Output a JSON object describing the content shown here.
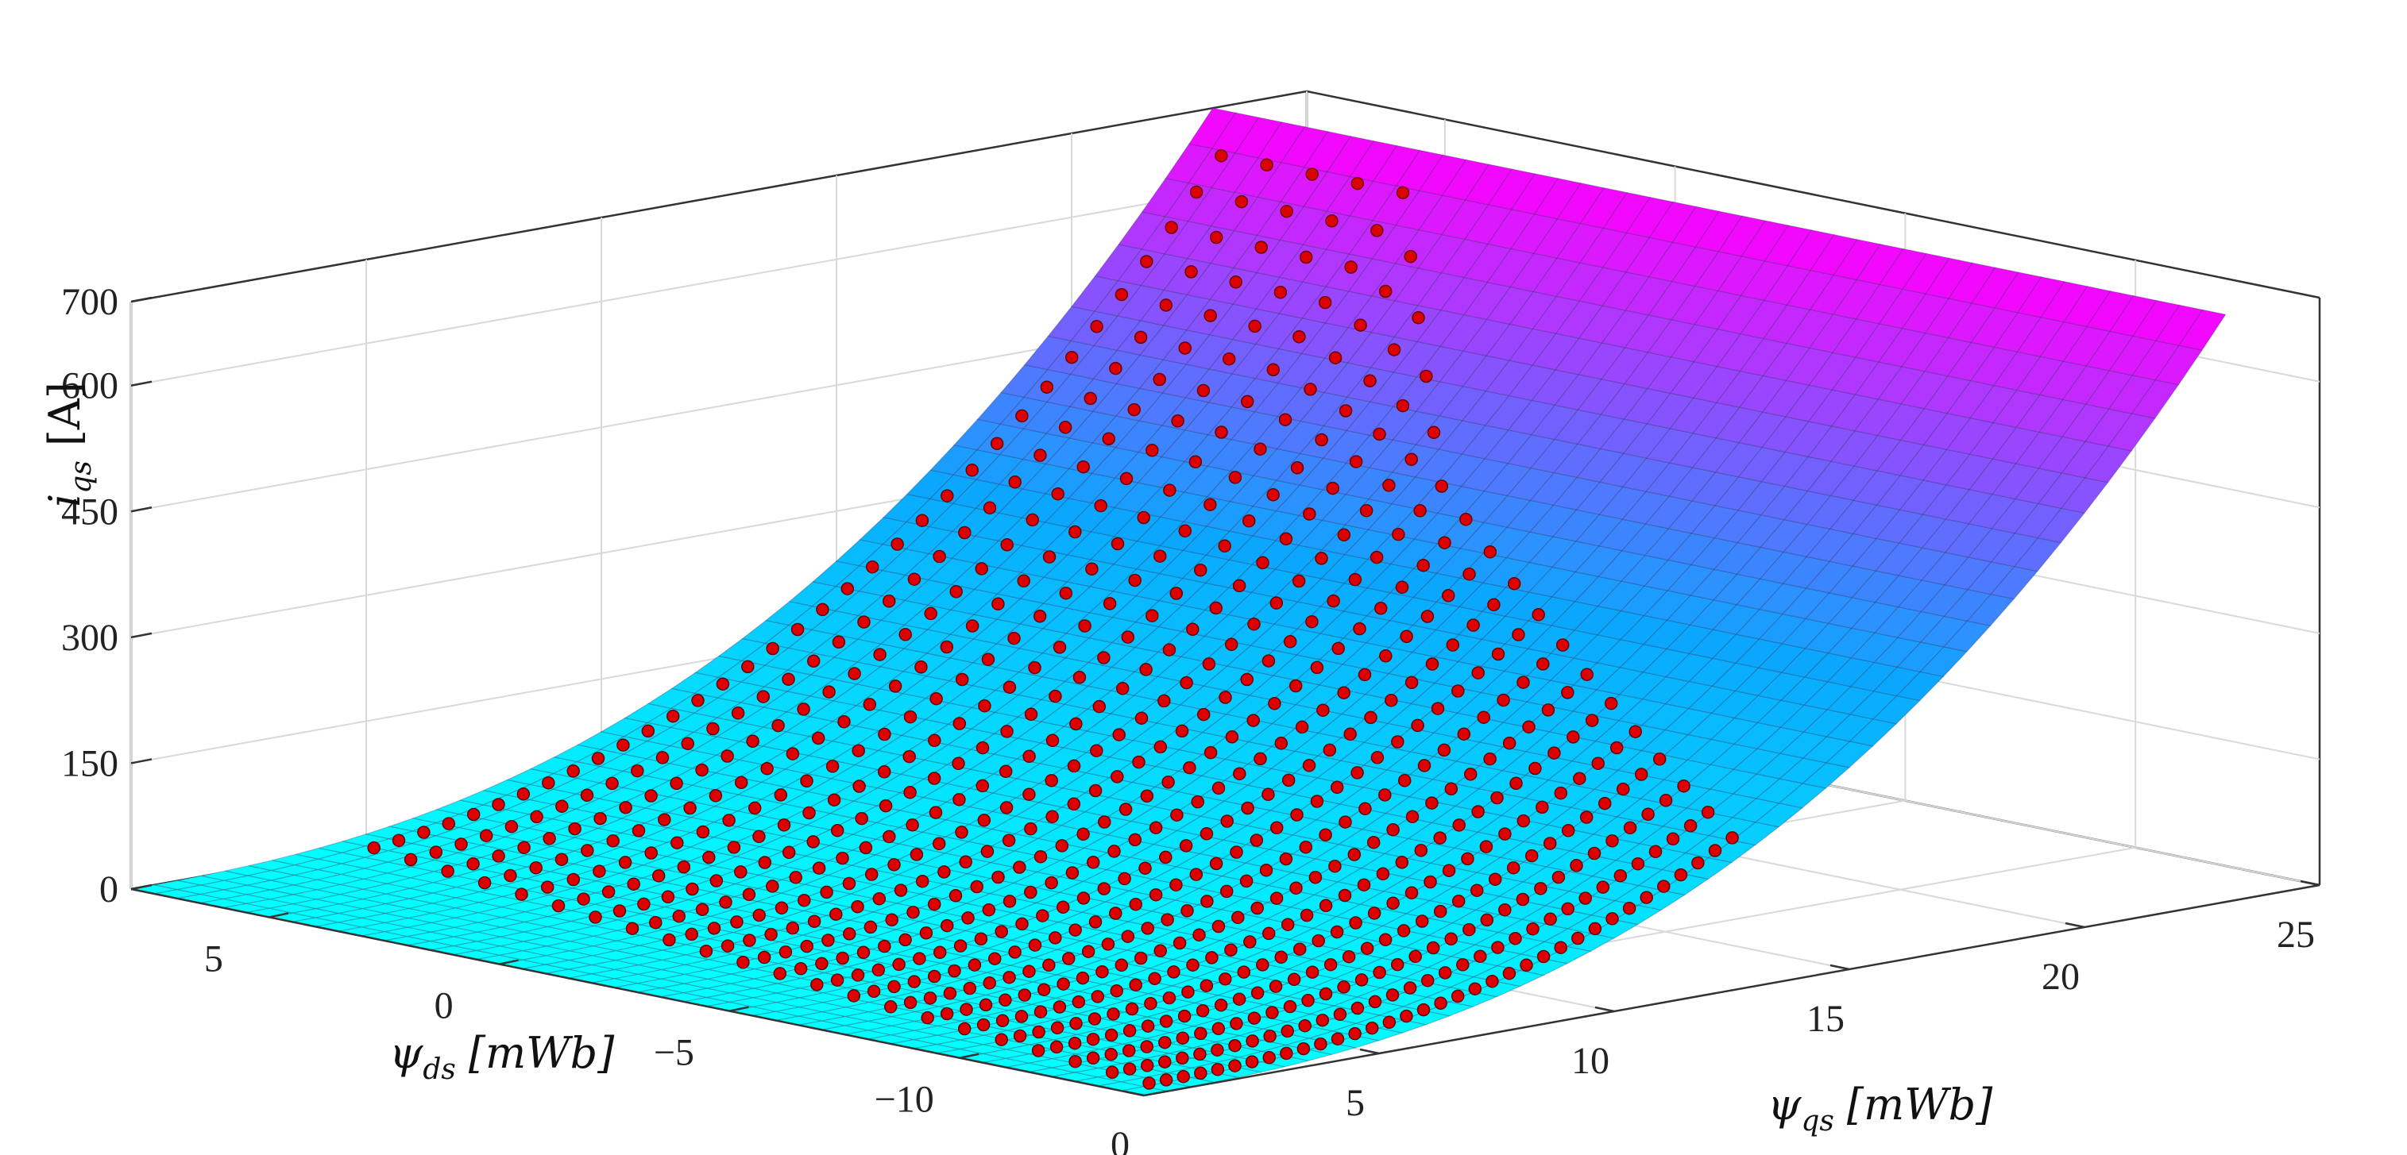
{
  "chart_data": {
    "type": "surface3d",
    "title": "",
    "axes": {
      "x": {
        "label": "ψ",
        "label_sub": "qs",
        "unit": "[mWb]",
        "range": [
          0,
          25
        ],
        "ticks": [
          0,
          5,
          10,
          15,
          20,
          25
        ]
      },
      "y": {
        "label": "ψ",
        "label_sub": "ds",
        "unit": "[mWb]",
        "range": [
          -14,
          8
        ],
        "ticks": [
          5,
          0,
          -5,
          -10
        ],
        "tick_labels": [
          "5",
          "0",
          "−5",
          "−10"
        ]
      },
      "z": {
        "label": "i",
        "label_sub": "qs",
        "unit": "[A]",
        "range": [
          0,
          700
        ],
        "ticks": [
          0,
          150,
          300,
          450,
          600,
          700
        ]
      }
    },
    "grid": true,
    "surface": {
      "colormap": [
        "#00ffff",
        "#ff00ff"
      ],
      "description_function": "iqs approximately 700*(psi_qs/23)^2.5",
      "psi_qs_range": [
        0,
        23
      ],
      "psi_ds_range": [
        -14,
        8
      ],
      "sample_points": [
        {
          "psi_qs": 0,
          "iqs": 0
        },
        {
          "psi_qs": 5,
          "iqs": 15
        },
        {
          "psi_qs": 10,
          "iqs": 87
        },
        {
          "psi_qs": 15,
          "iqs": 240
        },
        {
          "psi_qs": 20,
          "iqs": 490
        },
        {
          "psi_qs": 23,
          "iqs": 700
        }
      ]
    },
    "measured_points": {
      "color": "#dd0000",
      "marker": "circle",
      "note": "red markers lying on the surface along lines of constant psi_ds"
    }
  }
}
